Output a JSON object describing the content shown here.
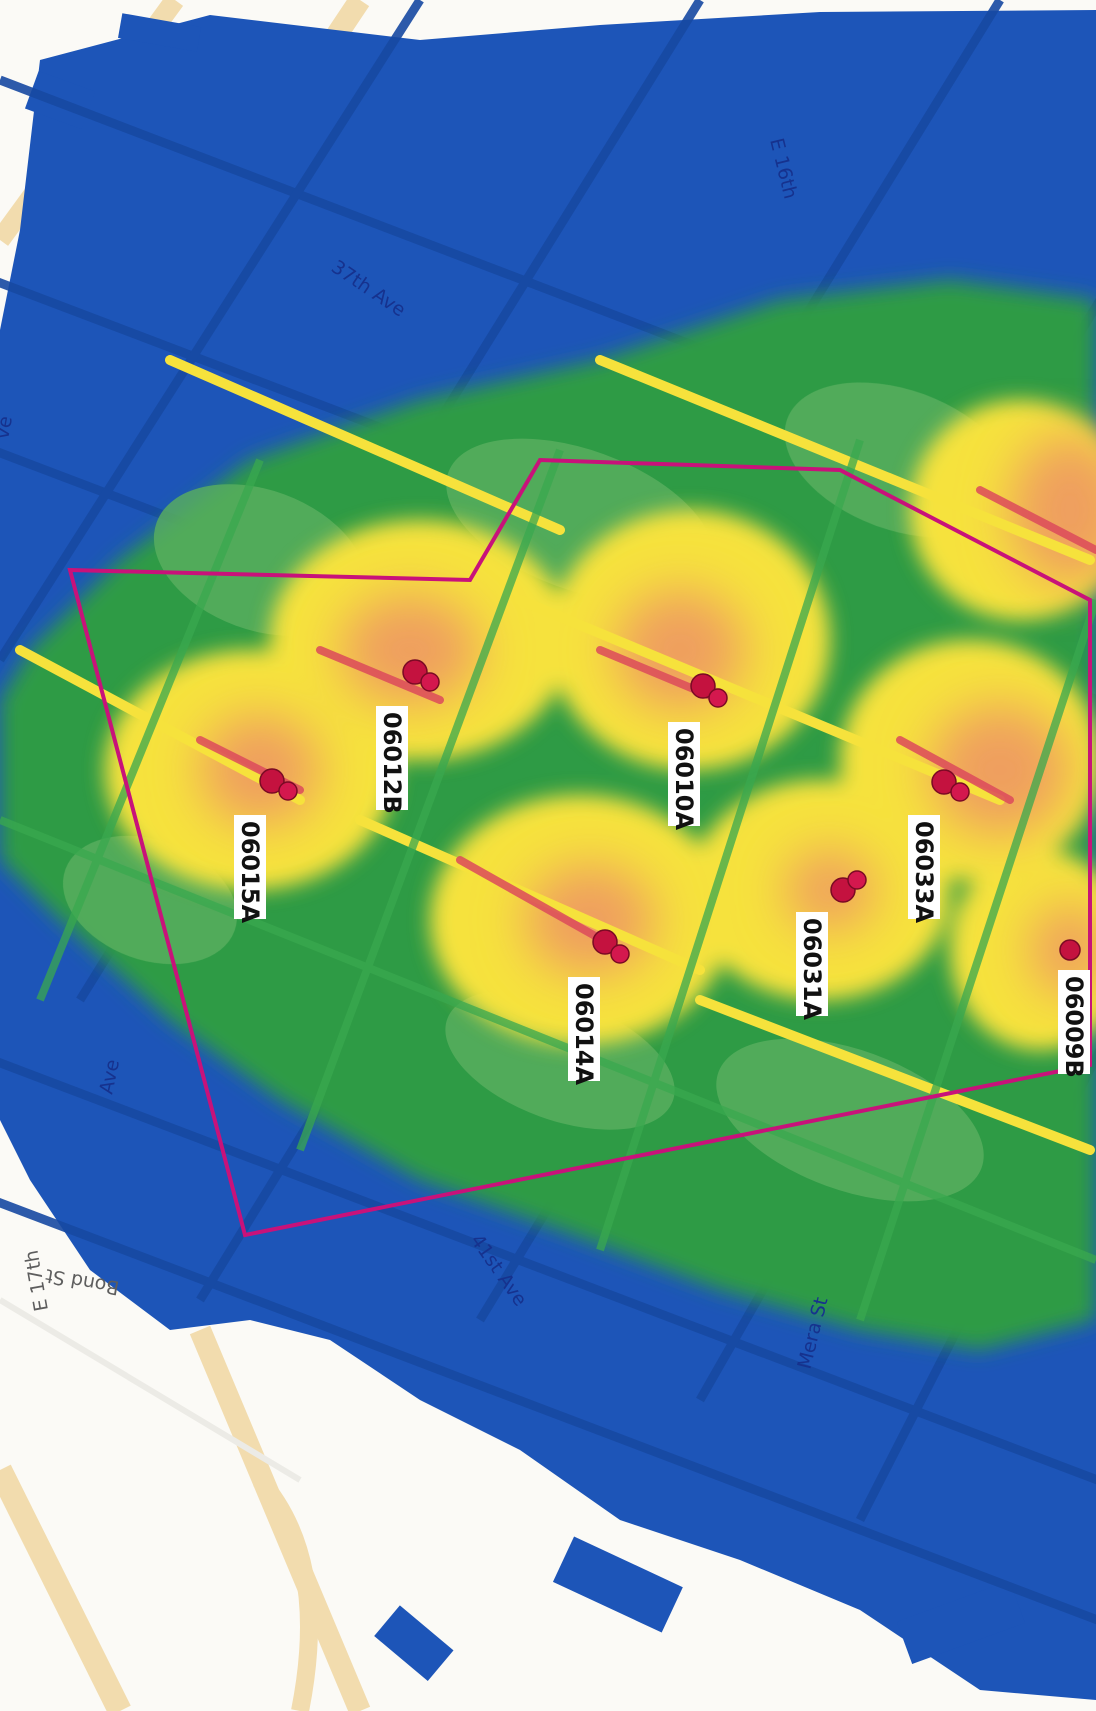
{
  "streets": {
    "e16th": "E 16th",
    "ave37": "37th Ave",
    "ave41": "41st Ave",
    "mera": "Mera St",
    "bond": "Bond St",
    "e17th": "E 17th",
    "partial_ave": "ve",
    "partial_left": "Ave"
  },
  "sites": [
    {
      "id": "06012B"
    },
    {
      "id": "06015A"
    },
    {
      "id": "06010A"
    },
    {
      "id": "06014A"
    },
    {
      "id": "06031A"
    },
    {
      "id": "06033A"
    },
    {
      "id": "06009B"
    }
  ],
  "colors": {
    "weak_blue": "#1d55b8",
    "medium_green": "#2e9b45",
    "strong_yellow": "#f6e23c",
    "very_strong_orange": "#ef9f5e",
    "core_red": "#dc4a5a",
    "boundary_magenta": "#c8127a",
    "marker": "#c4123f"
  }
}
